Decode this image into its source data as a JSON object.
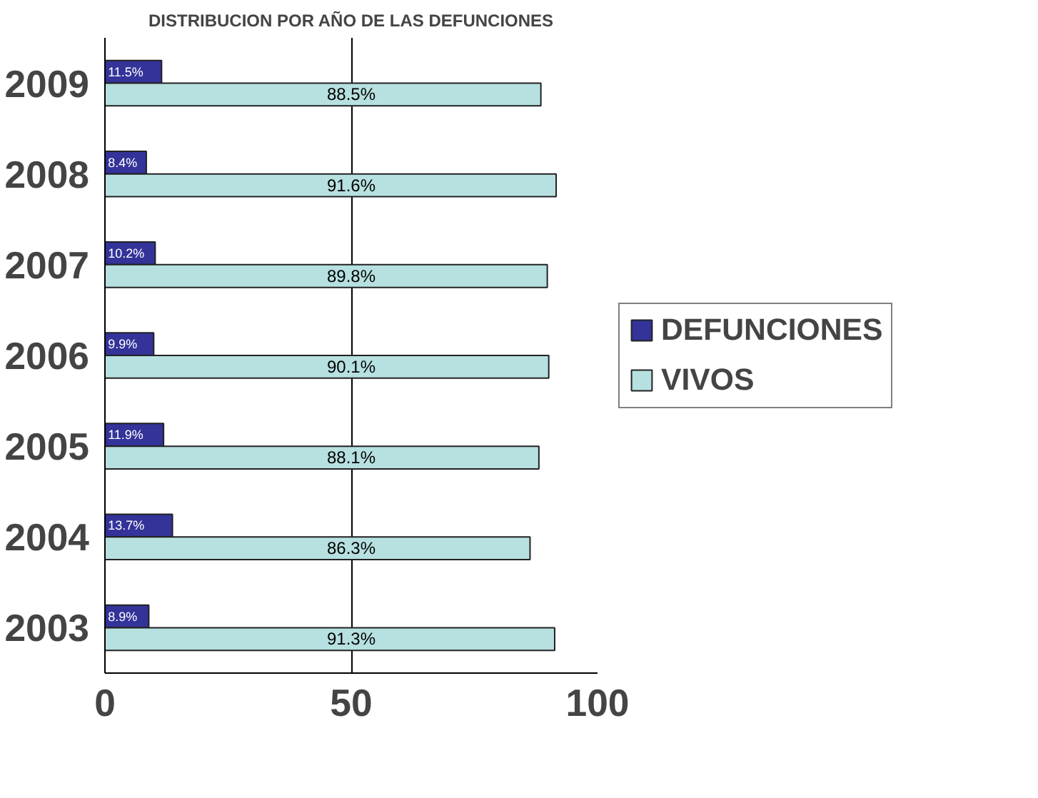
{
  "chart_data": {
    "type": "bar",
    "orientation": "horizontal",
    "title": "DISTRIBUCION POR AÑO DE LAS DEFUNCIONES",
    "categories": [
      "2009",
      "2008",
      "2007",
      "2006",
      "2005",
      "2004",
      "2003"
    ],
    "series": [
      {
        "name": "DEFUNCIONES",
        "color": "#333399",
        "values": [
          11.5,
          8.4,
          10.2,
          9.9,
          11.9,
          13.7,
          8.9
        ],
        "value_labels": [
          "11.5%",
          "8.4%",
          "10.2%",
          "9.9%",
          "11.9%",
          "13.7%",
          "8.9%"
        ]
      },
      {
        "name": "VIVOS",
        "color": "#b7e0e0",
        "values": [
          88.5,
          91.6,
          89.8,
          90.1,
          88.1,
          86.3,
          91.3
        ],
        "value_labels": [
          "88.5%",
          "91.6%",
          "89.8%",
          "90.1%",
          "88.1%",
          "86.3%",
          "91.3%"
        ]
      }
    ],
    "xlim": [
      0,
      100
    ],
    "xticks": [
      0,
      50,
      100
    ],
    "grid": "x",
    "legend": "right"
  }
}
